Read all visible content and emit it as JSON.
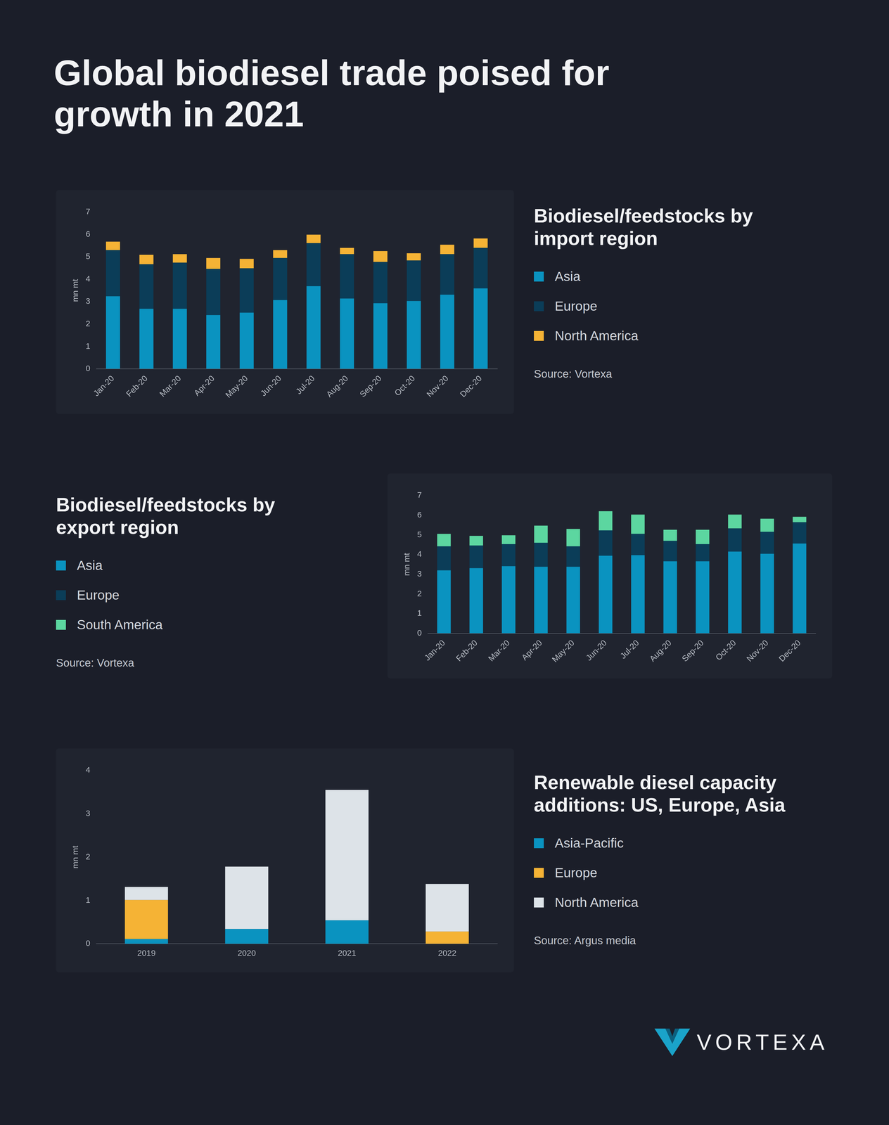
{
  "title": "Global biodiesel trade poised for growth in 2021",
  "brand": "VORTEXA",
  "chart_data": [
    {
      "type": "bar",
      "title": "Biodiesel/feedstocks by import region",
      "source": "Source: Vortexa",
      "ylabel": "mn mt",
      "stacked": true,
      "grid": false,
      "legend": "right",
      "categories": [
        "Jan-20",
        "Feb-20",
        "Mar-20",
        "Apr-20",
        "May-20",
        "Jun-20",
        "Jul-20",
        "Aug-20",
        "Sep-20",
        "Oct-20",
        "Nov-20",
        "Dec-20"
      ],
      "ylim": [
        0,
        7
      ],
      "yticks": [
        0,
        1,
        2,
        3,
        4,
        5,
        6,
        7
      ],
      "series": [
        {
          "name": "Asia",
          "color": "#0a93c0",
          "values": [
            3.24,
            2.68,
            2.68,
            2.4,
            2.51,
            3.07,
            3.69,
            3.14,
            2.93,
            3.03,
            3.31,
            3.59
          ]
        },
        {
          "name": "Europe",
          "color": "#0b3d58",
          "values": [
            2.06,
            1.99,
            2.06,
            2.06,
            1.98,
            1.88,
            1.92,
            1.98,
            1.84,
            1.81,
            1.81,
            1.81
          ]
        },
        {
          "name": "North America",
          "color": "#f5b335",
          "values": [
            0.38,
            0.42,
            0.38,
            0.49,
            0.42,
            0.35,
            0.38,
            0.28,
            0.49,
            0.32,
            0.42,
            0.42
          ]
        }
      ]
    },
    {
      "type": "bar",
      "title": "Biodiesel/feedstocks by export region",
      "source": "Source: Vortexa",
      "ylabel": "mn mt",
      "stacked": true,
      "grid": false,
      "legend": "left",
      "categories": [
        "Jan-20",
        "Feb-20",
        "Mar-20",
        "Apr-20",
        "May-20",
        "Jun-20",
        "Jul-20",
        "Aug-20",
        "Sep-20",
        "Oct-20",
        "Nov-20",
        "Dec-20"
      ],
      "ylim": [
        0,
        7
      ],
      "yticks": [
        0,
        1,
        2,
        3,
        4,
        5,
        6,
        7
      ],
      "series": [
        {
          "name": "Asia",
          "color": "#0a93c0",
          "values": [
            3.2,
            3.31,
            3.41,
            3.38,
            3.38,
            3.94,
            3.97,
            3.66,
            3.66,
            4.15,
            4.04,
            4.56
          ]
        },
        {
          "name": "Europe",
          "color": "#0b3d58",
          "values": [
            1.22,
            1.15,
            1.12,
            1.22,
            1.04,
            1.29,
            1.08,
            1.04,
            0.87,
            1.18,
            1.12,
            1.08
          ]
        },
        {
          "name": "South America",
          "color": "#5cd6a0",
          "values": [
            0.63,
            0.49,
            0.45,
            0.87,
            0.88,
            0.97,
            0.98,
            0.56,
            0.73,
            0.7,
            0.66,
            0.28
          ]
        }
      ]
    },
    {
      "type": "bar",
      "title": "Renewable diesel capacity additions: US, Europe, Asia",
      "source": "Source: Argus media",
      "ylabel": "mn mt",
      "stacked": true,
      "grid": false,
      "legend": "right",
      "categories": [
        "2019",
        "2020",
        "2021",
        "2022"
      ],
      "ylim": [
        0,
        4
      ],
      "yticks": [
        0,
        1,
        2,
        3,
        4
      ],
      "series": [
        {
          "name": "Asia-Pacific",
          "color": "#0a93c0",
          "values": [
            0.11,
            0.34,
            0.54,
            0
          ]
        },
        {
          "name": "Europe",
          "color": "#f5b335",
          "values": [
            0.9,
            0,
            0,
            0.28
          ]
        },
        {
          "name": "North America",
          "color": "#dde3e8",
          "values": [
            0.3,
            1.44,
            3.01,
            1.1
          ]
        }
      ]
    }
  ]
}
